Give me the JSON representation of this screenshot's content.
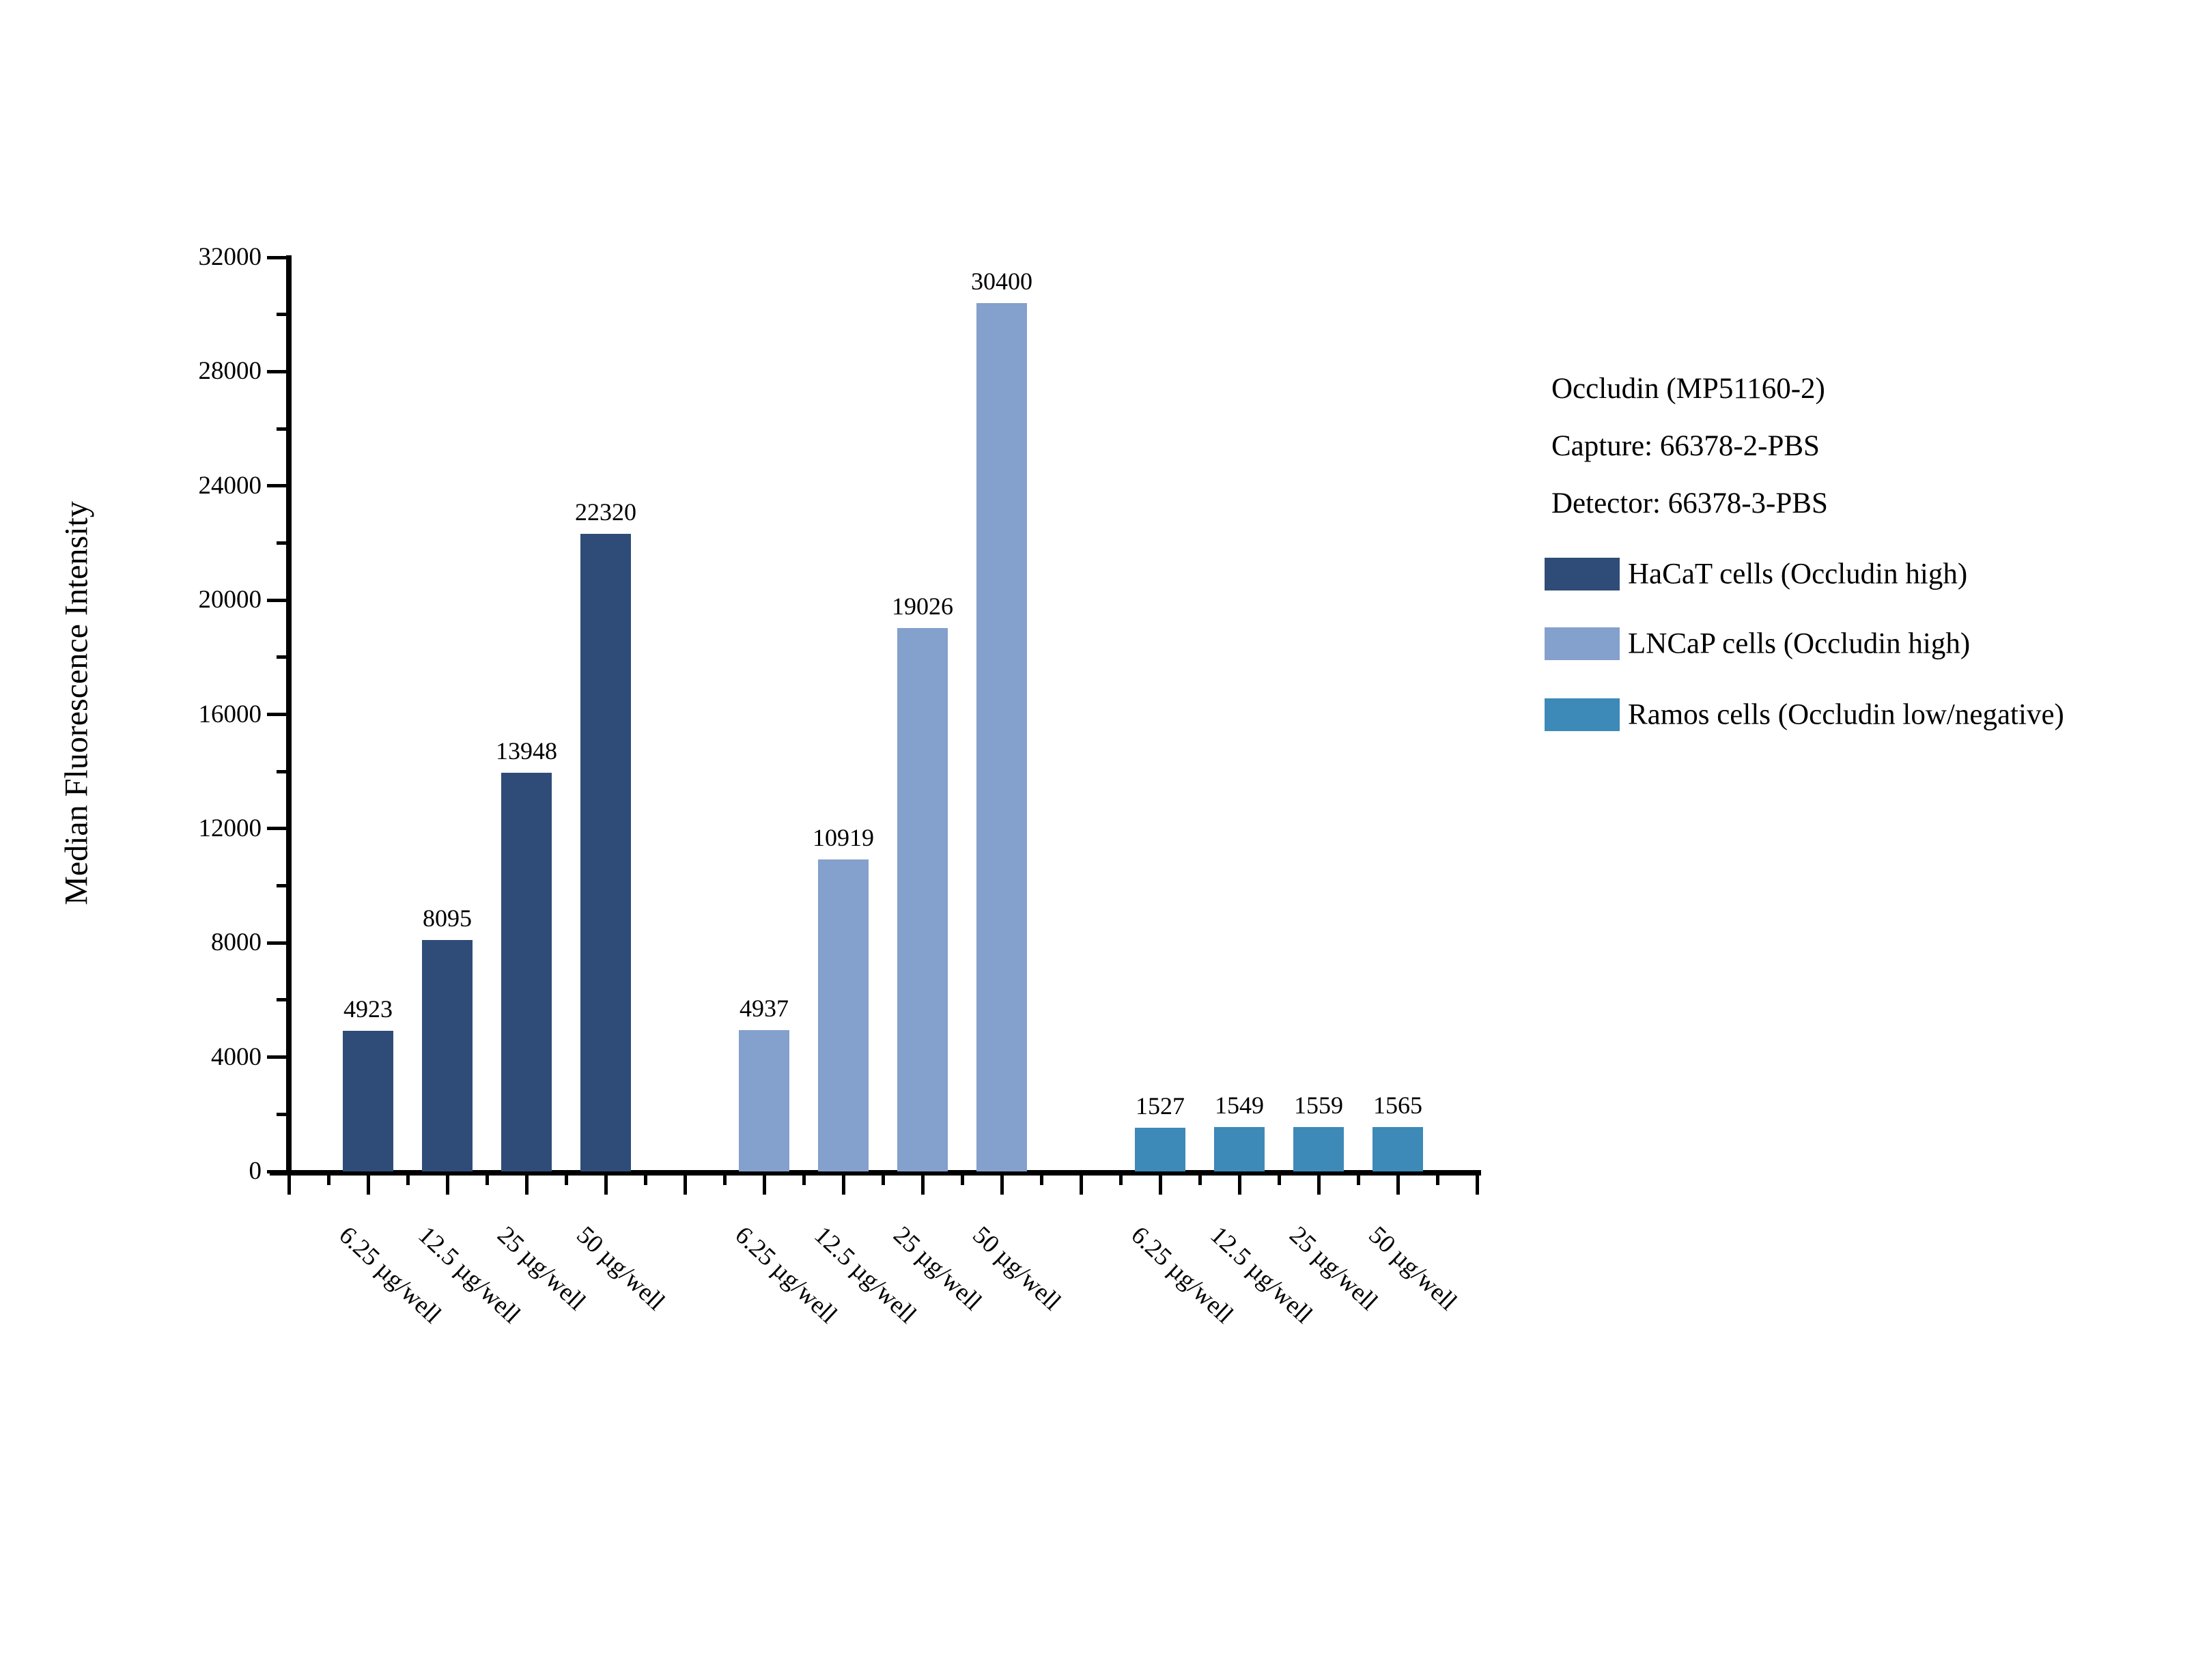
{
  "chart_data": {
    "type": "bar",
    "title": "",
    "xlabel": "",
    "ylabel": "Median Fluorescence Intensity",
    "ylim": [
      0,
      32000
    ],
    "ytick_major_step": 4000,
    "ytick_minor_step": 2000,
    "ytick_labels": [
      "0",
      "4000",
      "8000",
      "12000",
      "16000",
      "20000",
      "24000",
      "28000",
      "32000"
    ],
    "grid": false,
    "bar_value_labels": true,
    "legend_position": "right",
    "categories": [
      "6.25 µg/well",
      "12.5 µg/well",
      "25 µg/well",
      "50 µg/well"
    ],
    "series": [
      {
        "name": "HaCaT cells (Occludin high)",
        "color": "#2F4C78",
        "values": [
          4923,
          8095,
          13948,
          22320
        ]
      },
      {
        "name": "LNCaP cells (Occludin high)",
        "color": "#84A0CC",
        "values": [
          4937,
          10919,
          19026,
          30400
        ]
      },
      {
        "name": "Ramos cells (Occludin low/negative)",
        "color": "#3D89B8",
        "values": [
          1527,
          1549,
          1559,
          1565
        ]
      }
    ],
    "annotation": {
      "lines": [
        "Occludin (MP51160-2)",
        "Capture: 66378-2-PBS",
        "Detector: 66378-3-PBS"
      ]
    }
  }
}
